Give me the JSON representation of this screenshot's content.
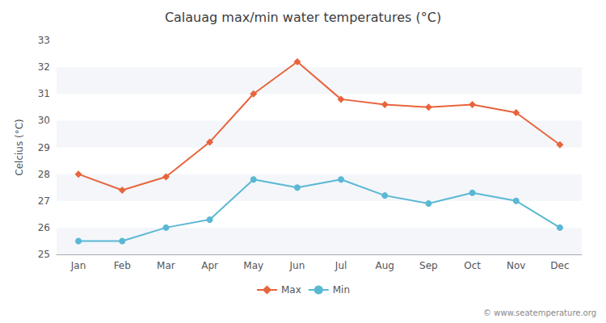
{
  "chart_data": {
    "type": "line",
    "title": "Calauag max/min water temperatures (°C)",
    "ylabel": "Celcius (°C)",
    "categories": [
      "Jan",
      "Feb",
      "Mar",
      "Apr",
      "May",
      "Jun",
      "Jul",
      "Aug",
      "Sep",
      "Oct",
      "Nov",
      "Dec"
    ],
    "series": [
      {
        "name": "Max",
        "color": "#e8643c",
        "marker": "diamond",
        "values": [
          28.0,
          27.4,
          27.9,
          29.2,
          31.0,
          32.2,
          30.8,
          30.6,
          30.5,
          30.6,
          30.3,
          29.1
        ]
      },
      {
        "name": "Min",
        "color": "#5ab8d4",
        "marker": "circle",
        "values": [
          25.5,
          25.5,
          26.0,
          26.3,
          27.8,
          27.5,
          27.8,
          27.2,
          26.9,
          27.3,
          27.0,
          26.0
        ]
      }
    ],
    "ylim": [
      25,
      33
    ],
    "yticks": [
      25,
      26,
      27,
      28,
      29,
      30,
      31,
      32,
      33
    ],
    "grid": false,
    "legend": "bottom",
    "annotations": [
      {
        "text": "© www.seatemperature.org"
      }
    ]
  }
}
